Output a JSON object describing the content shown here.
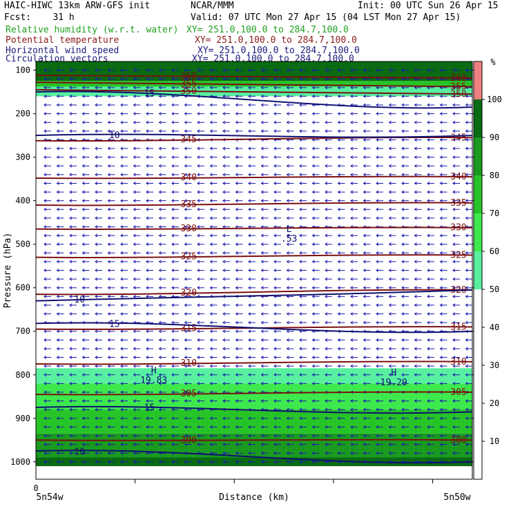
{
  "header": {
    "model": "HAIC-HIWC 13km ARW-GFS init",
    "org": "NCAR/MMM",
    "init": "Init: 00 UTC Sun 26 Apr 15",
    "fcst": "Fcst:    31 h",
    "valid": "Valid: 07 UTC Mon 27 Apr 15 (04 LST Mon 27 Apr 15)",
    "fields": [
      {
        "name": "Relative humidity (w.r.t. water)",
        "xy": "XY= 251.0,100.0 to 284.7,100.0",
        "color": "#21a01f"
      },
      {
        "name": "Potential temperature",
        "xy": "XY= 251.0,100.0 to 284.7,100.0",
        "color": "#8b1a1a"
      },
      {
        "name": "Horizontal wind speed",
        "xy": "XY= 251.0,100.0 to 284.7,100.0",
        "color": "#1a1a7a"
      },
      {
        "name": "Circulation vectors",
        "xy": "XY= 251.0,100.0 to 284.7,100.0",
        "color": "#1a1a7a"
      }
    ]
  },
  "colors": {
    "theta": "#7a1010",
    "wind": "#101070",
    "vectors": "#1a1ab0"
  },
  "chart_data": {
    "type": "contour",
    "ylabel": "Pressure (hPa)",
    "xlabel": "Distance (km)",
    "x_tick_labels": [
      "0"
    ],
    "x_end_labels": [
      "5n54w",
      "5n50w"
    ],
    "y_ticks": [
      100,
      200,
      300,
      400,
      500,
      600,
      700,
      800,
      900,
      1000
    ],
    "ylim": [
      1040,
      80
    ],
    "colorbar": {
      "unit": "%",
      "levels": [
        100,
        90,
        80,
        70,
        60,
        50,
        40,
        30,
        20,
        10
      ],
      "bands": [
        {
          "from": 100,
          "to": 110,
          "color": "#f08080"
        },
        {
          "from": 90,
          "to": 100,
          "color": "#0a6b12"
        },
        {
          "from": 80,
          "to": 90,
          "color": "#1a9a1f"
        },
        {
          "from": 70,
          "to": 80,
          "color": "#27c427"
        },
        {
          "from": 60,
          "to": 70,
          "color": "#3ee94e"
        },
        {
          "from": 50,
          "to": 60,
          "color": "#58f0a0"
        },
        {
          "from": 0,
          "to": 50,
          "color": "#ffffff"
        }
      ]
    },
    "rh_regions": [
      {
        "p_top": 80,
        "p_bot": 125,
        "color": "#0a6b12"
      },
      {
        "p_top": 125,
        "p_bot": 138,
        "color": "#27c427"
      },
      {
        "p_top": 138,
        "p_bot": 160,
        "color": "#58f0a0"
      },
      {
        "p_top": 785,
        "p_bot": 820,
        "color": "#58f0a0"
      },
      {
        "p_top": 820,
        "p_bot": 880,
        "color": "#3ee94e"
      },
      {
        "p_top": 880,
        "p_bot": 935,
        "color": "#27c427"
      },
      {
        "p_top": 935,
        "p_bot": 990,
        "color": "#1a9a1f"
      },
      {
        "p_top": 990,
        "p_bot": 1010,
        "color": "#0a6b12"
      }
    ],
    "theta_contours": [
      {
        "value": 300,
        "p_left": 950,
        "p_right": 950,
        "label": "300"
      },
      {
        "value": 305,
        "p_left": 845,
        "p_right": 840,
        "label": "305"
      },
      {
        "value": 310,
        "p_left": 775,
        "p_right": 770,
        "label": "310"
      },
      {
        "value": 315,
        "p_left": 695,
        "p_right": 690,
        "label": "315"
      },
      {
        "value": 320,
        "p_left": 615,
        "p_right": 605,
        "label": "320"
      },
      {
        "value": 325,
        "p_left": 530,
        "p_right": 525,
        "label": "325"
      },
      {
        "value": 330,
        "p_left": 465,
        "p_right": 462,
        "label": "330"
      },
      {
        "value": 335,
        "p_left": 410,
        "p_right": 405,
        "label": "335"
      },
      {
        "value": 340,
        "p_left": 348,
        "p_right": 345,
        "label": "340"
      },
      {
        "value": 345,
        "p_left": 262,
        "p_right": 255,
        "label": "345"
      },
      {
        "value": 350,
        "p_left": 145,
        "p_right": 155,
        "label": "350"
      },
      {
        "value": 355,
        "p_left": 128,
        "p_right": 138,
        "label": "355"
      },
      {
        "value": 360,
        "p_left": 112,
        "p_right": 118,
        "label": "360"
      }
    ],
    "wind_contours": [
      {
        "value": 10,
        "p_left": 630,
        "p_right": 605,
        "label": "10"
      },
      {
        "value": 15,
        "p_left": 682,
        "p_right": 700,
        "label": "15"
      },
      {
        "value": 15,
        "p_left": 875,
        "p_right": 885,
        "label": "15"
      },
      {
        "value": 10,
        "p_left": 975,
        "p_right": 1000,
        "label": "10"
      },
      {
        "value": 10,
        "p_left": 250,
        "p_right": 250,
        "label": "10"
      },
      {
        "value": 15,
        "p_left": 150,
        "p_right": 185,
        "label": "15"
      }
    ],
    "extrema": [
      {
        "type": "L",
        "value": ".53",
        "x_frac": 0.58,
        "p": 475
      },
      {
        "type": "H",
        "value": "19.83",
        "x_frac": 0.27,
        "p": 800
      },
      {
        "type": "H",
        "value": "19.29",
        "x_frac": 0.82,
        "p": 805
      }
    ]
  }
}
